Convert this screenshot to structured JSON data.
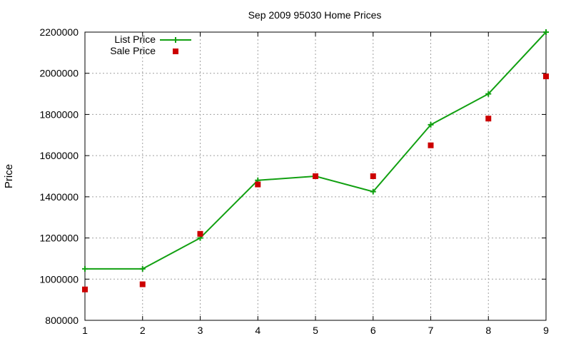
{
  "chart_data": {
    "type": "line",
    "title": "Sep 2009 95030 Home Prices",
    "xlabel": "",
    "ylabel": "Price",
    "x": [
      1,
      2,
      3,
      4,
      5,
      6,
      7,
      8,
      9
    ],
    "xlim": [
      1,
      9
    ],
    "ylim": [
      800000,
      2200000
    ],
    "xticks": [
      "1",
      "2",
      "3",
      "4",
      "5",
      "6",
      "7",
      "8",
      "9"
    ],
    "yticks": [
      "800000",
      "1000000",
      "1200000",
      "1400000",
      "1600000",
      "1800000",
      "2000000",
      "2200000"
    ],
    "grid": true,
    "legend_position": "top-left",
    "series": [
      {
        "name": "List Price",
        "style": "line-with-plus-markers",
        "color": "#11a011",
        "values": [
          1050000,
          1050000,
          1200000,
          1480000,
          1500000,
          1425000,
          1750000,
          1900000,
          2200000
        ]
      },
      {
        "name": "Sale Price",
        "style": "square-markers",
        "color": "#cc0000",
        "values": [
          950000,
          975000,
          1220000,
          1460000,
          1500000,
          1500000,
          1650000,
          1780000,
          1985000
        ]
      }
    ]
  }
}
